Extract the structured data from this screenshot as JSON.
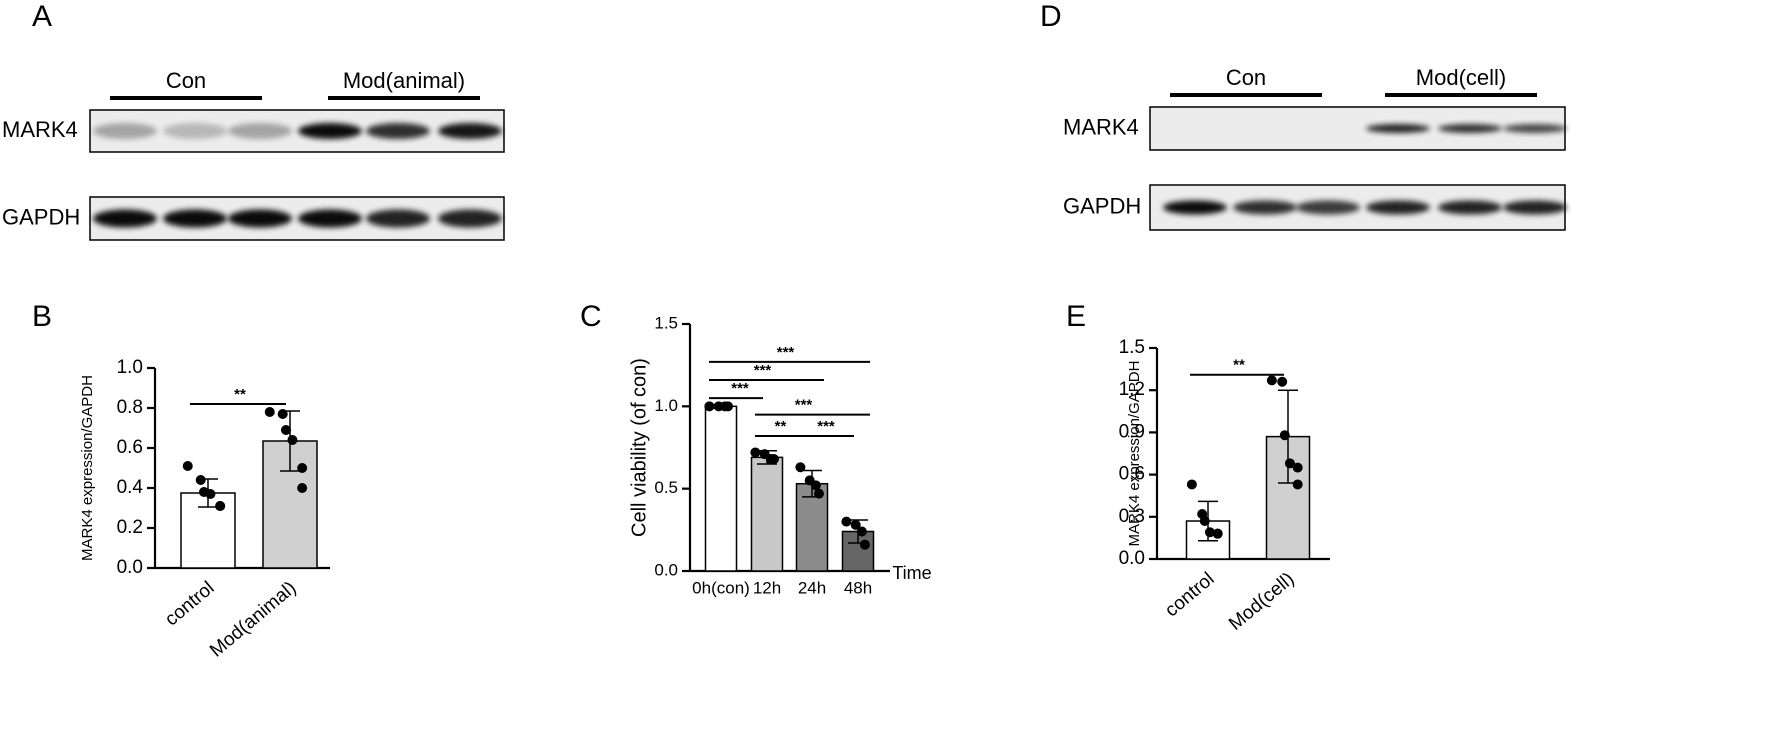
{
  "blots": [
    {
      "panel_label": "A",
      "groups": [
        "Con",
        "Mod(animal)"
      ],
      "rows": [
        "MARK4",
        "GAPDH"
      ]
    },
    {
      "panel_label": "D",
      "groups": [
        "Con",
        "Mod(cell)"
      ],
      "rows": [
        "MARK4",
        "GAPDH"
      ]
    }
  ],
  "chart_data": [
    {
      "type": "bar",
      "panel_label": "B",
      "y_label": "MARK4 expression/GAPDH",
      "categories": [
        "control",
        "Mod(animal)"
      ],
      "values": [
        0.375,
        0.635
      ],
      "errors": [
        0.07,
        0.15
      ],
      "points": [
        [
          0.51,
          0.44,
          0.38,
          0.37,
          0.31,
          0.31
        ],
        [
          0.78,
          0.77,
          0.69,
          0.64,
          0.5,
          0.4
        ]
      ],
      "colors": [
        "#ffffff",
        "#d0d0d0"
      ],
      "ylim": [
        0,
        1
      ],
      "yticks": [
        {
          "value": 0,
          "label": "0.0"
        },
        0.2,
        0.4,
        0.6,
        0.8,
        {
          "value": 1,
          "label": "1.0"
        }
      ],
      "brackets": [
        {
          "label": "**",
          "from": 0,
          "to": 1,
          "y": 0.82
        }
      ]
    },
    {
      "type": "bar",
      "panel_label": "C",
      "y_label": "Cell viability (of con)",
      "x_label": "Time",
      "categories": [
        "0h(con)",
        "12h",
        "24h",
        "48h"
      ],
      "values": [
        1.0,
        0.69,
        0.53,
        0.24
      ],
      "errors": [
        0.01,
        0.04,
        0.08,
        0.07
      ],
      "points": [
        [
          1.0,
          1.0,
          1.0,
          1.0
        ],
        [
          0.72,
          0.71,
          0.68,
          0.68
        ],
        [
          0.63,
          0.55,
          0.52,
          0.47
        ],
        [
          0.3,
          0.28,
          0.24,
          0.16
        ]
      ],
      "colors": [
        "#ffffff",
        "#c8c8c8",
        "#8c8c8c",
        "#666666"
      ],
      "ylim": [
        0,
        1.5
      ],
      "yticks": [
        {
          "value": 0,
          "label": "0.0"
        },
        0.5,
        {
          "value": 1,
          "label": "1.0"
        },
        1.5
      ],
      "brackets": [
        {
          "label": "***",
          "from": 0,
          "to": 3,
          "y": 1.27
        },
        {
          "label": "***",
          "from": 0,
          "to": 2,
          "y": 1.16
        },
        {
          "label": "***",
          "from": 0,
          "to": 1,
          "y": 1.05
        },
        {
          "label": "***",
          "from": 1,
          "to": 3,
          "y": 0.95
        },
        {
          "label": "**",
          "from": 1,
          "to": 2,
          "y": 0.82
        },
        {
          "label": "***",
          "from": 2,
          "to": 3,
          "y": 0.82
        }
      ]
    },
    {
      "type": "bar",
      "panel_label": "E",
      "y_label": "MARK4 expression/GAPDH",
      "categories": [
        "control",
        "Mod(cell)"
      ],
      "values": [
        0.27,
        0.87
      ],
      "errors": [
        0.14,
        0.33
      ],
      "points": [
        [
          0.53,
          0.32,
          0.27,
          0.19,
          0.18,
          0.18
        ],
        [
          1.27,
          1.26,
          0.88,
          0.68,
          0.65,
          0.53
        ]
      ],
      "colors": [
        "#ffffff",
        "#d0d0d0"
      ],
      "ylim": [
        0,
        1.5
      ],
      "yticks": [
        {
          "value": 0,
          "label": "0.0"
        },
        0.3,
        0.6,
        0.9,
        1.2,
        1.5
      ],
      "brackets": [
        {
          "label": "**",
          "from": 0,
          "to": 1,
          "y": 1.31
        }
      ]
    }
  ]
}
